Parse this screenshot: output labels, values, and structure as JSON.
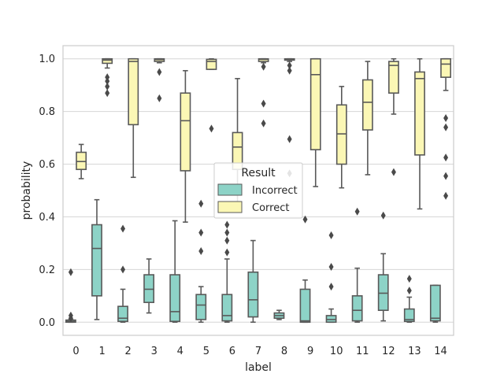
{
  "chart_data": {
    "type": "box",
    "xlabel": "label",
    "ylabel": "probability",
    "categories": [
      "0",
      "1",
      "2",
      "3",
      "4",
      "5",
      "6",
      "7",
      "8",
      "9",
      "10",
      "11",
      "12",
      "13",
      "14"
    ],
    "ylim": [
      -0.05,
      1.05
    ],
    "yticks": [
      "0.0",
      "0.2",
      "0.4",
      "0.6",
      "0.8",
      "1.0"
    ],
    "grid": true,
    "legend": {
      "title": "Result",
      "placement": "center",
      "entries": [
        {
          "name": "Incorrect",
          "color": "#8dd3c7"
        },
        {
          "name": "Correct",
          "color": "#fbf7b5"
        }
      ]
    },
    "series": [
      {
        "name": "Incorrect",
        "color": "#8dd3c7",
        "boxes": [
          {
            "q1": 0.0,
            "median": 0.003,
            "q3": 0.008,
            "whisker_low": 0.0,
            "whisker_high": 0.01,
            "outliers": [
              0.19,
              0.025,
              0.015
            ]
          },
          {
            "q1": 0.1,
            "median": 0.28,
            "q3": 0.37,
            "whisker_low": 0.01,
            "whisker_high": 0.465,
            "outliers": []
          },
          {
            "q1": 0.003,
            "median": 0.015,
            "q3": 0.06,
            "whisker_low": 0.0,
            "whisker_high": 0.125,
            "outliers": [
              0.2,
              0.355
            ]
          },
          {
            "q1": 0.075,
            "median": 0.125,
            "q3": 0.18,
            "whisker_low": 0.035,
            "whisker_high": 0.24,
            "outliers": []
          },
          {
            "q1": 0.003,
            "median": 0.04,
            "q3": 0.18,
            "whisker_low": 0.0,
            "whisker_high": 0.385,
            "outliers": []
          },
          {
            "q1": 0.01,
            "median": 0.065,
            "q3": 0.105,
            "whisker_low": 0.0,
            "whisker_high": 0.135,
            "outliers": [
              0.27,
              0.34,
              0.45
            ]
          },
          {
            "q1": 0.005,
            "median": 0.025,
            "q3": 0.105,
            "whisker_low": 0.0,
            "whisker_high": 0.24,
            "outliers": [
              0.265,
              0.31,
              0.34,
              0.37
            ]
          },
          {
            "q1": 0.02,
            "median": 0.085,
            "q3": 0.19,
            "whisker_low": 0.0,
            "whisker_high": 0.31,
            "outliers": []
          },
          {
            "q1": 0.015,
            "median": 0.025,
            "q3": 0.035,
            "whisker_low": 0.01,
            "whisker_high": 0.045,
            "outliers": []
          },
          {
            "q1": 0.0,
            "median": 0.005,
            "q3": 0.125,
            "whisker_low": 0.0,
            "whisker_high": 0.16,
            "outliers": [
              0.39
            ]
          },
          {
            "q1": 0.0,
            "median": 0.01,
            "q3": 0.025,
            "whisker_low": 0.0,
            "whisker_high": 0.05,
            "outliers": [
              0.135,
              0.21,
              0.33
            ]
          },
          {
            "q1": 0.005,
            "median": 0.045,
            "q3": 0.1,
            "whisker_low": 0.0,
            "whisker_high": 0.205,
            "outliers": [
              0.42
            ]
          },
          {
            "q1": 0.045,
            "median": 0.11,
            "q3": 0.18,
            "whisker_low": 0.005,
            "whisker_high": 0.26,
            "outliers": [
              0.405
            ]
          },
          {
            "q1": 0.003,
            "median": 0.01,
            "q3": 0.05,
            "whisker_low": 0.0,
            "whisker_high": 0.095,
            "outliers": [
              0.12,
              0.165
            ]
          },
          {
            "q1": 0.005,
            "median": 0.015,
            "q3": 0.14,
            "whisker_low": 0.0,
            "whisker_high": 0.14,
            "outliers": []
          }
        ]
      },
      {
        "name": "Correct",
        "color": "#fbf7b5",
        "boxes": [
          {
            "q1": 0.58,
            "median": 0.61,
            "q3": 0.645,
            "whisker_low": 0.545,
            "whisker_high": 0.675,
            "outliers": []
          },
          {
            "q1": 0.983,
            "median": 0.995,
            "q3": 1.0,
            "whisker_low": 0.965,
            "whisker_high": 1.0,
            "outliers": [
              0.87,
              0.895,
              0.915,
              0.93
            ]
          },
          {
            "q1": 0.75,
            "median": 0.99,
            "q3": 1.0,
            "whisker_low": 0.55,
            "whisker_high": 1.0,
            "outliers": []
          },
          {
            "q1": 0.99,
            "median": 0.997,
            "q3": 1.0,
            "whisker_low": 0.985,
            "whisker_high": 1.0,
            "outliers": [
              0.85,
              0.95
            ]
          },
          {
            "q1": 0.575,
            "median": 0.765,
            "q3": 0.87,
            "whisker_low": 0.38,
            "whisker_high": 0.955,
            "outliers": []
          },
          {
            "q1": 0.96,
            "median": 0.99,
            "q3": 0.998,
            "whisker_low": 0.96,
            "whisker_high": 1.0,
            "outliers": [
              0.735
            ]
          },
          {
            "q1": 0.58,
            "median": 0.665,
            "q3": 0.72,
            "whisker_low": 0.44,
            "whisker_high": 0.925,
            "outliers": []
          },
          {
            "q1": 0.99,
            "median": 0.998,
            "q3": 1.0,
            "whisker_low": 0.985,
            "whisker_high": 1.0,
            "outliers": [
              0.755,
              0.83,
              0.97
            ]
          },
          {
            "q1": 0.995,
            "median": 0.999,
            "q3": 1.0,
            "whisker_low": 0.99,
            "whisker_high": 1.0,
            "outliers": [
              0.565,
              0.695,
              0.955,
              0.975
            ]
          },
          {
            "q1": 0.655,
            "median": 0.94,
            "q3": 1.0,
            "whisker_low": 0.515,
            "whisker_high": 1.0,
            "outliers": []
          },
          {
            "q1": 0.6,
            "median": 0.715,
            "q3": 0.825,
            "whisker_low": 0.51,
            "whisker_high": 0.895,
            "outliers": []
          },
          {
            "q1": 0.73,
            "median": 0.835,
            "q3": 0.92,
            "whisker_low": 0.56,
            "whisker_high": 0.99,
            "outliers": []
          },
          {
            "q1": 0.87,
            "median": 0.975,
            "q3": 0.99,
            "whisker_low": 0.79,
            "whisker_high": 1.0,
            "outliers": [
              0.57
            ]
          },
          {
            "q1": 0.635,
            "median": 0.925,
            "q3": 0.95,
            "whisker_low": 0.43,
            "whisker_high": 1.0,
            "outliers": []
          },
          {
            "q1": 0.93,
            "median": 0.98,
            "q3": 1.0,
            "whisker_low": 0.88,
            "whisker_high": 1.0,
            "outliers": [
              0.48,
              0.555,
              0.625,
              0.74,
              0.775
            ]
          }
        ]
      }
    ]
  }
}
